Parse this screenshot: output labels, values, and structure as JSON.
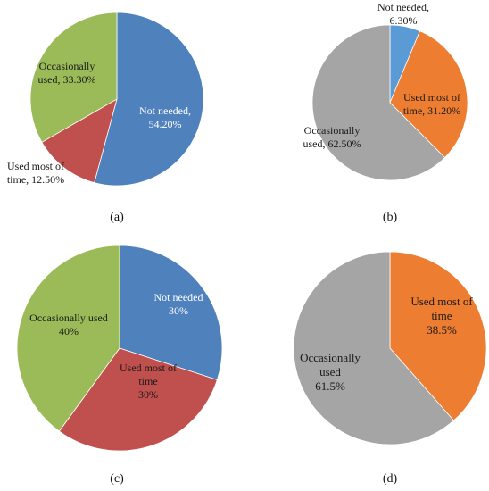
{
  "colors": {
    "blue": "#4f81bd",
    "light_blue": "#5b9bd5",
    "red": "#c0504d",
    "green": "#9bbb59",
    "orange": "#ed7d31",
    "gray": "#a5a5a5"
  },
  "chart_data": [
    {
      "type": "pie",
      "caption": "(a)",
      "slices": [
        {
          "name": "Not needed",
          "value": 54.2,
          "label_lines": [
            "Not needed,",
            "54.20%"
          ],
          "color": "#4f81bd",
          "label_color": "#ffffff"
        },
        {
          "name": "Used most of time",
          "value": 12.5,
          "label_lines": [
            "Used most of",
            "time, 12.50%"
          ],
          "color": "#c0504d",
          "label_color": "#1a1a1a"
        },
        {
          "name": "Occasionally used",
          "value": 33.3,
          "label_lines": [
            "Occasionally",
            "used, 33.30%"
          ],
          "color": "#9bbb59",
          "label_color": "#1a1a1a"
        }
      ]
    },
    {
      "type": "pie",
      "caption": "(b)",
      "slices": [
        {
          "name": "Not needed",
          "value": 6.3,
          "label_lines": [
            "Not needed,",
            "6.30%"
          ],
          "color": "#5b9bd5",
          "label_color": "#1a1a1a"
        },
        {
          "name": "Used most of time",
          "value": 31.2,
          "label_lines": [
            "Used most of",
            "time, 31.20%"
          ],
          "color": "#ed7d31",
          "label_color": "#1a1a1a"
        },
        {
          "name": "Occasionally used",
          "value": 62.5,
          "label_lines": [
            "Occasionally",
            "used, 62.50%"
          ],
          "color": "#a5a5a5",
          "label_color": "#1a1a1a"
        }
      ]
    },
    {
      "type": "pie",
      "caption": "(c)",
      "slices": [
        {
          "name": "Not needed",
          "value": 30,
          "label_lines": [
            "Not needed",
            "30%"
          ],
          "color": "#4f81bd",
          "label_color": "#ffffff"
        },
        {
          "name": "Used most of time",
          "value": 30,
          "label_lines": [
            "Used most of",
            "time",
            "30%"
          ],
          "color": "#c0504d",
          "label_color": "#1a1a1a"
        },
        {
          "name": "Occasionally used",
          "value": 40,
          "label_lines": [
            "Occasionally used",
            "40%"
          ],
          "color": "#9bbb59",
          "label_color": "#1a1a1a"
        }
      ]
    },
    {
      "type": "pie",
      "caption": "(d)",
      "slices": [
        {
          "name": "Used most of time",
          "value": 38.5,
          "label_lines": [
            "Used most of",
            "time",
            "38.5%"
          ],
          "color": "#ed7d31",
          "label_color": "#1a1a1a"
        },
        {
          "name": "Occasionally used",
          "value": 61.5,
          "label_lines": [
            "Occasionally",
            "used",
            "61.5%"
          ],
          "color": "#a5a5a5",
          "label_color": "#1a1a1a"
        }
      ]
    }
  ]
}
